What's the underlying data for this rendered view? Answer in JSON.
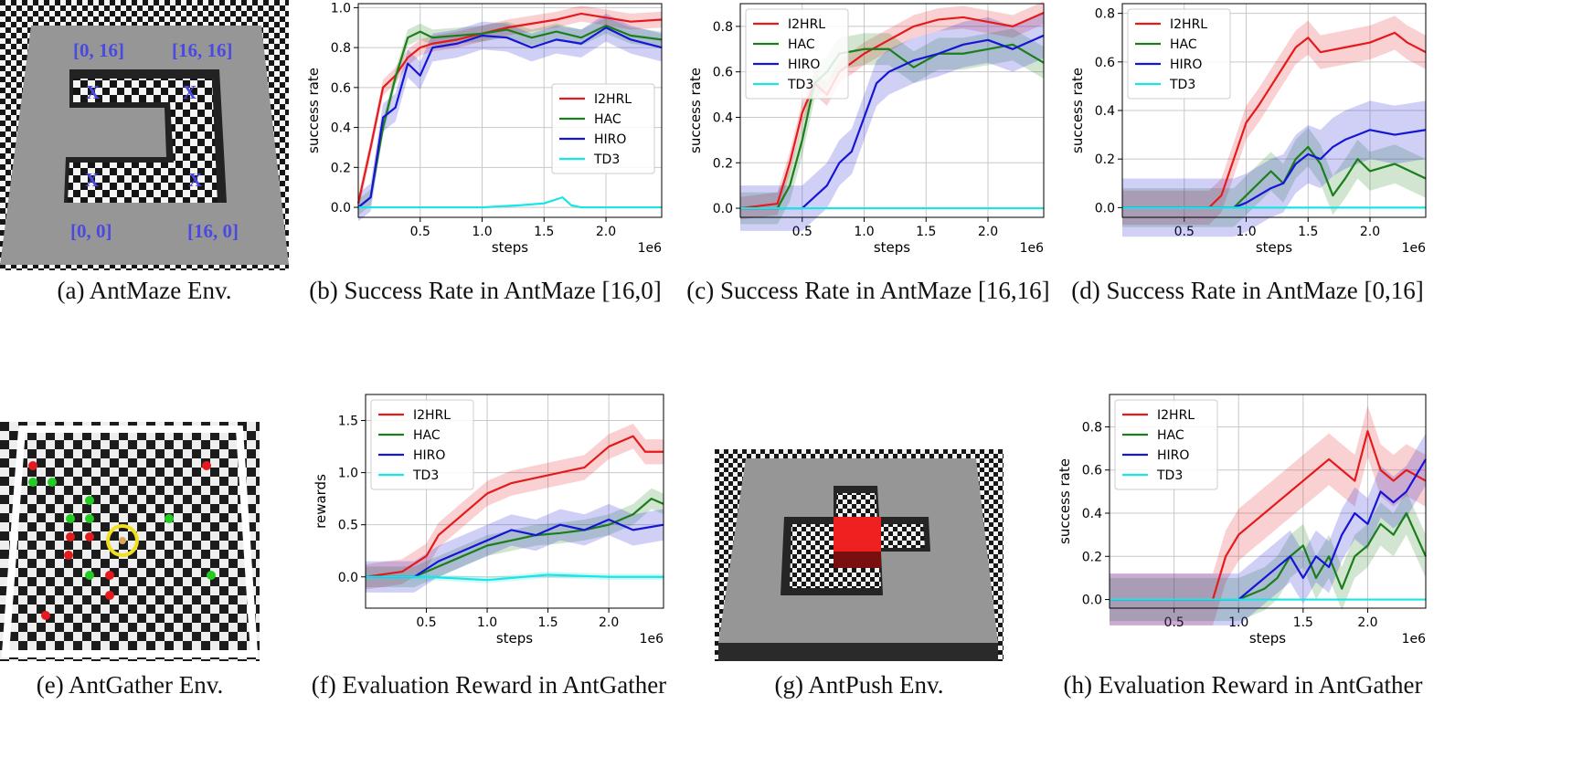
{
  "captions": {
    "a": "(a) AntMaze Env.",
    "b": "(b) Success Rate in AntMaze [16,0]",
    "c": "(c) Success Rate in AntMaze [16,16]",
    "d": "(d) Success Rate in AntMaze [0,16]",
    "e": "(e) AntGather Env.",
    "f": "(f) Evaluation Reward in AntGather",
    "g": "(g) AntPush Env.",
    "h": "(h) Evaluation Reward in AntGather"
  },
  "antmaze": {
    "labels": {
      "tl": "[0, 16]",
      "tr": "[16, 16]",
      "bl": "[0, 0]",
      "br": "[16, 0]"
    },
    "marker": "X"
  },
  "colors": {
    "I2HRL": "#e41a1c",
    "HAC": "#1a7f1a",
    "HIRO": "#1515d6",
    "TD3": "#18e6e6"
  },
  "chart_data": [
    {
      "id": "b",
      "type": "line",
      "title": "",
      "xlabel": "steps",
      "ylabel": "success rate",
      "x_multiplier": "1e6",
      "xlim": [
        0,
        2.45
      ],
      "ylim": [
        -0.05,
        1.02
      ],
      "xticks": [
        0.5,
        1.0,
        1.5,
        2.0
      ],
      "xtick_labels": [
        "0.5",
        "1.0",
        "1.5",
        "2.0"
      ],
      "yticks": [
        0.0,
        0.2,
        0.4,
        0.6,
        0.8,
        1.0
      ],
      "ytick_labels": [
        "0.0",
        "0.2",
        "0.4",
        "0.6",
        "0.8",
        "1.0"
      ],
      "legend": "center-right",
      "series": [
        {
          "name": "I2HRL",
          "x": [
            0,
            0.1,
            0.2,
            0.3,
            0.4,
            0.5,
            0.6,
            0.8,
            1.0,
            1.2,
            1.4,
            1.6,
            1.8,
            2.0,
            2.2,
            2.45
          ],
          "values": [
            0.02,
            0.3,
            0.6,
            0.66,
            0.75,
            0.8,
            0.82,
            0.84,
            0.87,
            0.9,
            0.92,
            0.94,
            0.97,
            0.95,
            0.93,
            0.94
          ],
          "band": 0.04
        },
        {
          "name": "HAC",
          "x": [
            0,
            0.1,
            0.2,
            0.3,
            0.4,
            0.5,
            0.6,
            0.8,
            1.0,
            1.2,
            1.4,
            1.6,
            1.8,
            2.0,
            2.2,
            2.45
          ],
          "values": [
            0.0,
            0.05,
            0.4,
            0.65,
            0.85,
            0.88,
            0.85,
            0.86,
            0.87,
            0.89,
            0.85,
            0.88,
            0.85,
            0.91,
            0.86,
            0.84
          ],
          "band": 0.04
        },
        {
          "name": "HIRO",
          "x": [
            0,
            0.1,
            0.2,
            0.3,
            0.4,
            0.5,
            0.6,
            0.8,
            1.0,
            1.2,
            1.4,
            1.6,
            1.8,
            2.0,
            2.2,
            2.45
          ],
          "values": [
            0.0,
            0.05,
            0.45,
            0.5,
            0.72,
            0.66,
            0.8,
            0.82,
            0.86,
            0.85,
            0.8,
            0.84,
            0.82,
            0.9,
            0.84,
            0.8
          ],
          "band": 0.07
        },
        {
          "name": "TD3",
          "x": [
            0,
            0.5,
            1.0,
            1.3,
            1.5,
            1.65,
            1.72,
            1.8,
            2.0,
            2.45
          ],
          "values": [
            0.0,
            0.0,
            0.0,
            0.01,
            0.02,
            0.05,
            0.01,
            0.0,
            0.0,
            0.0
          ],
          "band": 0.005
        }
      ]
    },
    {
      "id": "c",
      "type": "line",
      "title": "",
      "xlabel": "steps",
      "ylabel": "success rate",
      "x_multiplier": "1e6",
      "xlim": [
        0,
        2.45
      ],
      "ylim": [
        -0.04,
        0.9
      ],
      "xticks": [
        0.5,
        1.0,
        1.5,
        2.0
      ],
      "xtick_labels": [
        "0.5",
        "1.0",
        "1.5",
        "2.0"
      ],
      "yticks": [
        0.0,
        0.2,
        0.4,
        0.6,
        0.8
      ],
      "ytick_labels": [
        "0.0",
        "0.2",
        "0.4",
        "0.6",
        "0.8"
      ],
      "legend": "top-left",
      "series": [
        {
          "name": "I2HRL",
          "x": [
            0,
            0.3,
            0.4,
            0.5,
            0.6,
            0.7,
            0.8,
            1.0,
            1.2,
            1.4,
            1.6,
            1.8,
            2.0,
            2.2,
            2.45
          ],
          "values": [
            0.0,
            0.02,
            0.2,
            0.42,
            0.55,
            0.5,
            0.6,
            0.68,
            0.74,
            0.8,
            0.83,
            0.84,
            0.82,
            0.8,
            0.86
          ],
          "band": 0.05
        },
        {
          "name": "HAC",
          "x": [
            0,
            0.3,
            0.4,
            0.5,
            0.6,
            0.7,
            0.8,
            1.0,
            1.2,
            1.4,
            1.6,
            1.8,
            2.0,
            2.2,
            2.45
          ],
          "values": [
            0.0,
            0.0,
            0.1,
            0.3,
            0.55,
            0.6,
            0.68,
            0.7,
            0.7,
            0.62,
            0.68,
            0.68,
            0.7,
            0.72,
            0.64
          ],
          "band": 0.07
        },
        {
          "name": "HIRO",
          "x": [
            0,
            0.5,
            0.6,
            0.7,
            0.8,
            0.9,
            1.0,
            1.1,
            1.2,
            1.4,
            1.6,
            1.8,
            2.0,
            2.2,
            2.45
          ],
          "values": [
            0.0,
            0.0,
            0.05,
            0.1,
            0.2,
            0.25,
            0.4,
            0.55,
            0.6,
            0.65,
            0.68,
            0.72,
            0.74,
            0.7,
            0.76
          ],
          "band": 0.1
        },
        {
          "name": "TD3",
          "x": [
            0,
            2.45
          ],
          "values": [
            0.0,
            0.0
          ],
          "band": 0.0
        }
      ]
    },
    {
      "id": "d",
      "type": "line",
      "title": "",
      "xlabel": "steps",
      "ylabel": "success rate",
      "x_multiplier": "1e6",
      "xlim": [
        0,
        2.45
      ],
      "ylim": [
        -0.04,
        0.84
      ],
      "xticks": [
        0.5,
        1.0,
        1.5,
        2.0
      ],
      "xtick_labels": [
        "0.5",
        "1.0",
        "1.5",
        "2.0"
      ],
      "yticks": [
        0.0,
        0.2,
        0.4,
        0.6,
        0.8
      ],
      "ytick_labels": [
        "0.0",
        "0.2",
        "0.4",
        "0.6",
        "0.8"
      ],
      "legend": "top-left",
      "series": [
        {
          "name": "I2HRL",
          "x": [
            0,
            0.7,
            0.8,
            0.9,
            1.0,
            1.1,
            1.2,
            1.3,
            1.4,
            1.5,
            1.6,
            1.8,
            2.0,
            2.2,
            2.3,
            2.45
          ],
          "values": [
            0.0,
            0.0,
            0.05,
            0.2,
            0.35,
            0.42,
            0.5,
            0.58,
            0.66,
            0.7,
            0.64,
            0.66,
            0.68,
            0.72,
            0.68,
            0.64
          ],
          "band": 0.07
        },
        {
          "name": "HAC",
          "x": [
            0,
            0.9,
            1.0,
            1.1,
            1.2,
            1.3,
            1.4,
            1.5,
            1.6,
            1.7,
            1.8,
            1.9,
            2.0,
            2.2,
            2.45
          ],
          "values": [
            0.0,
            0.0,
            0.05,
            0.1,
            0.15,
            0.1,
            0.2,
            0.25,
            0.18,
            0.05,
            0.12,
            0.2,
            0.15,
            0.18,
            0.12
          ],
          "band": 0.08
        },
        {
          "name": "HIRO",
          "x": [
            0,
            0.9,
            1.0,
            1.1,
            1.2,
            1.3,
            1.4,
            1.5,
            1.6,
            1.7,
            1.8,
            1.9,
            2.0,
            2.2,
            2.45
          ],
          "values": [
            0.0,
            0.0,
            0.02,
            0.05,
            0.08,
            0.1,
            0.18,
            0.22,
            0.2,
            0.25,
            0.28,
            0.3,
            0.32,
            0.3,
            0.32
          ],
          "band": 0.12
        },
        {
          "name": "TD3",
          "x": [
            0,
            2.45
          ],
          "values": [
            0.0,
            0.0
          ],
          "band": 0.0
        }
      ]
    },
    {
      "id": "f",
      "type": "line",
      "title": "",
      "xlabel": "steps",
      "ylabel": "rewards",
      "x_multiplier": "1e6",
      "xlim": [
        0,
        2.45
      ],
      "ylim": [
        -0.3,
        1.75
      ],
      "xticks": [
        0.5,
        1.0,
        1.5,
        2.0
      ],
      "xtick_labels": [
        "0.5",
        "1.0",
        "1.5",
        "2.0"
      ],
      "yticks": [
        0.0,
        0.5,
        1.0,
        1.5
      ],
      "ytick_labels": [
        "0.0",
        "0.5",
        "1.0",
        "1.5"
      ],
      "legend": "top-left",
      "series": [
        {
          "name": "I2HRL",
          "x": [
            0,
            0.3,
            0.5,
            0.6,
            0.8,
            1.0,
            1.2,
            1.4,
            1.6,
            1.8,
            2.0,
            2.2,
            2.3,
            2.45
          ],
          "values": [
            0.0,
            0.05,
            0.2,
            0.4,
            0.6,
            0.8,
            0.9,
            0.95,
            1.0,
            1.05,
            1.25,
            1.35,
            1.2,
            1.2
          ],
          "band": 0.12
        },
        {
          "name": "HAC",
          "x": [
            0,
            0.4,
            0.6,
            0.8,
            1.0,
            1.2,
            1.4,
            1.6,
            1.8,
            2.0,
            2.2,
            2.35,
            2.45
          ],
          "values": [
            0.0,
            0.0,
            0.1,
            0.2,
            0.3,
            0.35,
            0.4,
            0.42,
            0.45,
            0.5,
            0.6,
            0.75,
            0.7
          ],
          "band": 0.1
        },
        {
          "name": "HIRO",
          "x": [
            0,
            0.4,
            0.6,
            0.8,
            1.0,
            1.2,
            1.4,
            1.6,
            1.8,
            2.0,
            2.2,
            2.45
          ],
          "values": [
            0.0,
            0.0,
            0.15,
            0.25,
            0.35,
            0.45,
            0.4,
            0.5,
            0.45,
            0.55,
            0.45,
            0.5
          ],
          "band": 0.15
        },
        {
          "name": "TD3",
          "x": [
            0,
            0.5,
            1.0,
            1.5,
            2.0,
            2.45
          ],
          "values": [
            0.0,
            0.0,
            -0.03,
            0.02,
            0.0,
            0.0
          ],
          "band": 0.03
        }
      ]
    },
    {
      "id": "h",
      "type": "line",
      "title": "",
      "xlabel": "steps",
      "ylabel": "success rate",
      "x_multiplier": "1e6",
      "xlim": [
        0,
        2.45
      ],
      "ylim": [
        -0.04,
        0.95
      ],
      "xticks": [
        0.5,
        1.0,
        1.5,
        2.0
      ],
      "xtick_labels": [
        "0.5",
        "1.0",
        "1.5",
        "2.0"
      ],
      "yticks": [
        0.0,
        0.2,
        0.4,
        0.6,
        0.8
      ],
      "ytick_labels": [
        "0.0",
        "0.2",
        "0.4",
        "0.6",
        "0.8"
      ],
      "legend": "top-left",
      "series": [
        {
          "name": "I2HRL",
          "x": [
            0,
            0.8,
            0.9,
            1.0,
            1.1,
            1.2,
            1.3,
            1.4,
            1.5,
            1.6,
            1.7,
            1.8,
            1.9,
            2.0,
            2.1,
            2.2,
            2.3,
            2.45
          ],
          "values": [
            0.0,
            0.0,
            0.2,
            0.3,
            0.35,
            0.4,
            0.45,
            0.5,
            0.55,
            0.6,
            0.65,
            0.6,
            0.55,
            0.78,
            0.6,
            0.55,
            0.6,
            0.55
          ],
          "band": 0.12
        },
        {
          "name": "HAC",
          "x": [
            0,
            1.0,
            1.2,
            1.3,
            1.4,
            1.5,
            1.6,
            1.7,
            1.8,
            1.9,
            2.0,
            2.1,
            2.2,
            2.3,
            2.45
          ],
          "values": [
            0.0,
            0.0,
            0.05,
            0.1,
            0.2,
            0.25,
            0.1,
            0.2,
            0.05,
            0.2,
            0.25,
            0.35,
            0.3,
            0.4,
            0.2
          ],
          "band": 0.1
        },
        {
          "name": "HIRO",
          "x": [
            0,
            1.0,
            1.1,
            1.2,
            1.3,
            1.4,
            1.5,
            1.6,
            1.7,
            1.8,
            1.9,
            2.0,
            2.1,
            2.2,
            2.3,
            2.45
          ],
          "values": [
            0.0,
            0.0,
            0.05,
            0.1,
            0.15,
            0.2,
            0.1,
            0.2,
            0.15,
            0.3,
            0.4,
            0.35,
            0.5,
            0.45,
            0.5,
            0.65
          ],
          "band": 0.12
        },
        {
          "name": "TD3",
          "x": [
            0,
            2.45
          ],
          "values": [
            0.0,
            0.0
          ],
          "band": 0.0
        }
      ]
    }
  ]
}
